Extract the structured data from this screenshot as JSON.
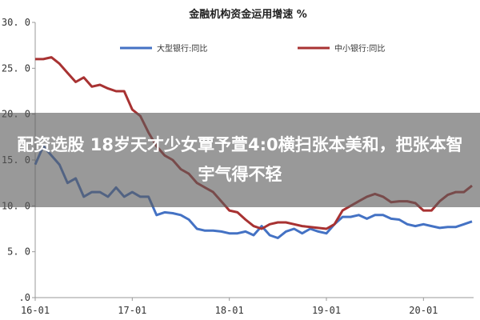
{
  "chart_data": {
    "type": "line",
    "title": "金融机构资金运用增速 %",
    "ylim": [
      0,
      30
    ],
    "yticks": [
      "30. 0",
      "25. 0",
      "20. 0",
      "15. 0",
      "10. 0",
      "5. 0",
      ".0"
    ],
    "xtick_labels": [
      "16-01",
      "17-01",
      "18-01",
      "19-01",
      "20-01"
    ],
    "x": [
      "2016-01",
      "2016-02",
      "2016-03",
      "2016-04",
      "2016-05",
      "2016-06",
      "2016-07",
      "2016-08",
      "2016-09",
      "2016-10",
      "2016-11",
      "2016-12",
      "2017-01",
      "2017-02",
      "2017-03",
      "2017-04",
      "2017-05",
      "2017-06",
      "2017-07",
      "2017-08",
      "2017-09",
      "2017-10",
      "2017-11",
      "2017-12",
      "2018-01",
      "2018-02",
      "2018-03",
      "2018-04",
      "2018-05",
      "2018-06",
      "2018-07",
      "2018-08",
      "2018-09",
      "2018-10",
      "2018-11",
      "2018-12",
      "2019-01",
      "2019-02",
      "2019-03",
      "2019-04",
      "2019-05",
      "2019-06",
      "2019-07",
      "2019-08",
      "2019-09",
      "2019-10",
      "2019-11",
      "2019-12",
      "2020-01",
      "2020-02",
      "2020-03",
      "2020-04",
      "2020-05",
      "2020-06",
      "2020-07"
    ],
    "series": [
      {
        "name": "大型银行:同比",
        "color": "#4472c4",
        "values": [
          14.5,
          16.5,
          15.5,
          14.5,
          12.5,
          13,
          11,
          11.5,
          11.5,
          11,
          12,
          11,
          11.5,
          11,
          11,
          9,
          9.3,
          9.2,
          9,
          8.5,
          7.5,
          7.3,
          7.3,
          7.2,
          7,
          7,
          7.2,
          6.8,
          7.8,
          6.8,
          6.5,
          7.2,
          7.5,
          7,
          7.5,
          7.2,
          7,
          8,
          8.8,
          8.8,
          9,
          8.6,
          9,
          9,
          8.6,
          8.5,
          8,
          7.8,
          8,
          7.8,
          7.6,
          7.7,
          7.7,
          8,
          8.3
        ]
      },
      {
        "name": "中小银行:同比",
        "color": "#a83232",
        "values": [
          26,
          26,
          26.2,
          25.5,
          24.5,
          23.5,
          24,
          23,
          23.2,
          22.8,
          22.5,
          22.5,
          20.5,
          19.8,
          18,
          16.5,
          15.5,
          15,
          14,
          13.5,
          12.5,
          12,
          11.5,
          10.5,
          9.5,
          9.3,
          8.5,
          7.8,
          7.5,
          8,
          8.2,
          8.2,
          8,
          7.8,
          7.7,
          7.6,
          7.5,
          8,
          9.5,
          10,
          10.5,
          11,
          11.3,
          11,
          10.4,
          10.5,
          10.5,
          10.3,
          9.5,
          9.5,
          10.5,
          11.2,
          11.5,
          11.5,
          12.2
        ]
      }
    ],
    "legend": "top",
    "grid": false
  },
  "overlay": {
    "text": "配资选股 18岁天才少女覃予萱4:0横扫张本美和，把张本智宇气得不轻"
  }
}
